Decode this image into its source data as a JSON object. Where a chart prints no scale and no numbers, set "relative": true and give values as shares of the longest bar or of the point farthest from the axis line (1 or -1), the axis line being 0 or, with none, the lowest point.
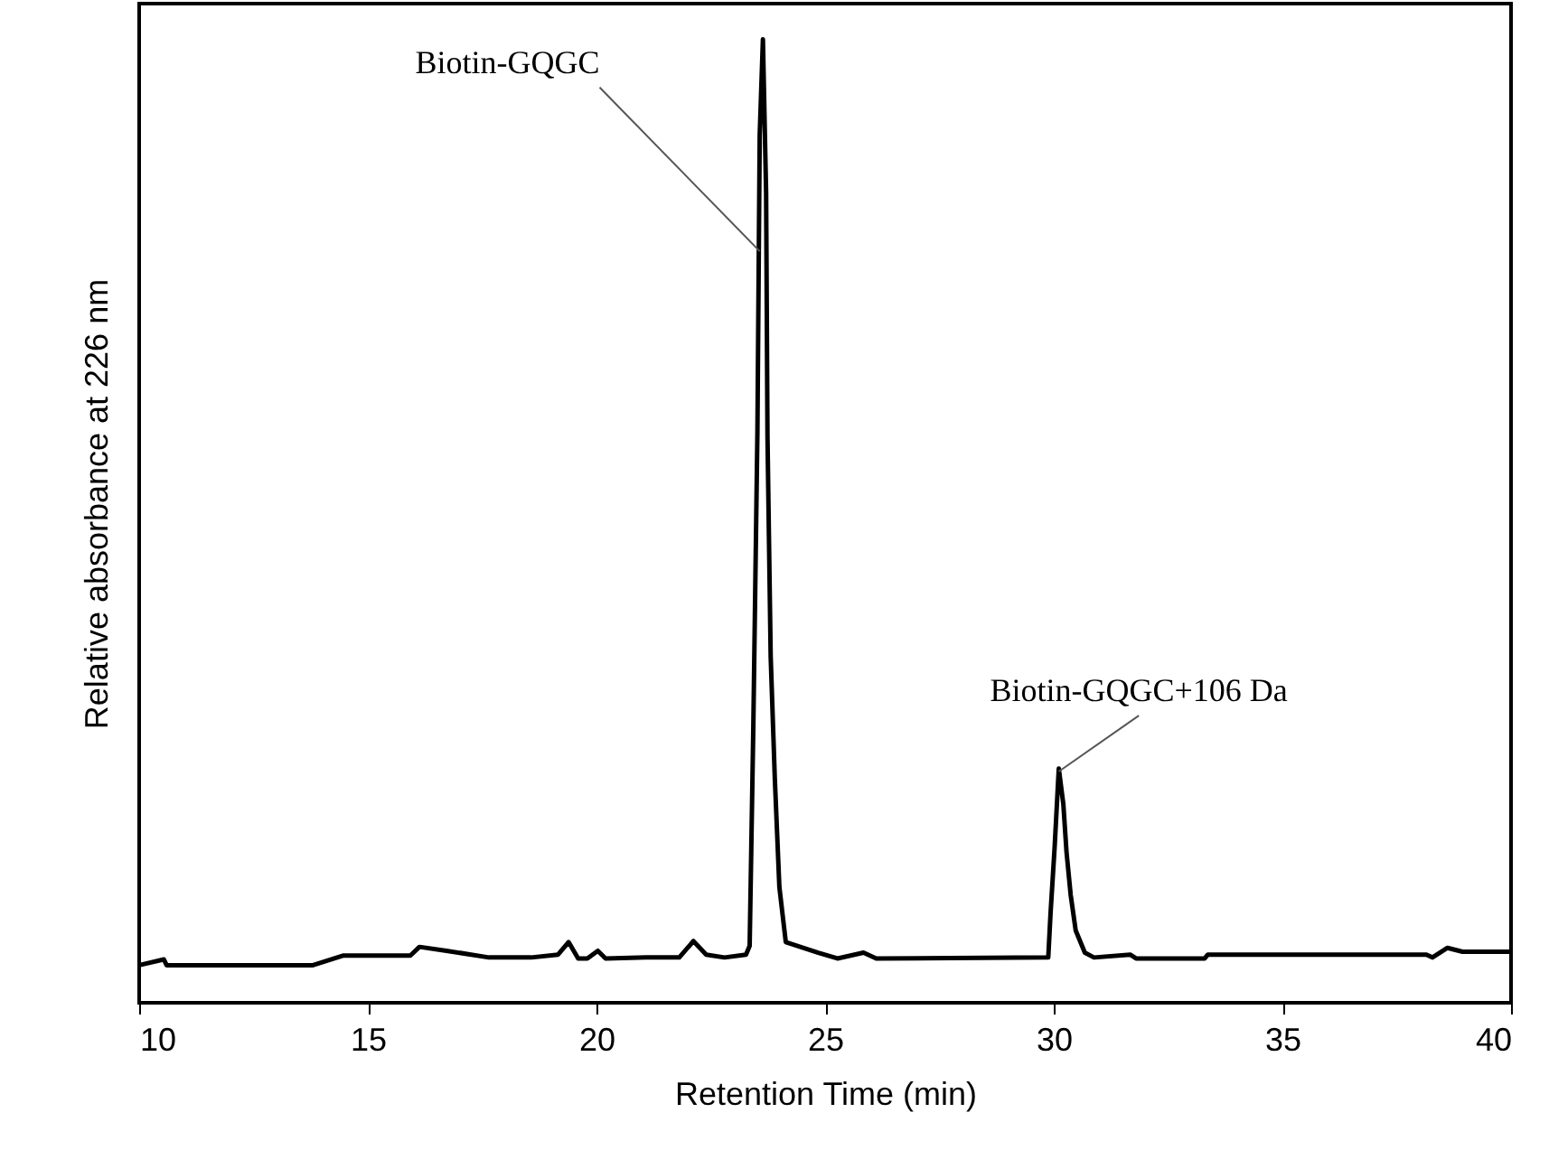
{
  "chart_data": {
    "type": "line",
    "relative": true,
    "xlabel": "Retention Time (min)",
    "ylabel": "Relative absorbance at 226 nm",
    "xlim": [
      10,
      40
    ],
    "xticks": [
      10,
      15,
      20,
      25,
      30,
      35,
      40
    ],
    "grid": false,
    "marker": "none",
    "line_style": "solid",
    "x": [
      10.0,
      10.54,
      10.6,
      13.8,
      14.47,
      15.93,
      16.13,
      16.72,
      17.65,
      18.57,
      19.16,
      19.39,
      19.6,
      19.8,
      20.03,
      20.2,
      21.09,
      21.81,
      22.12,
      22.4,
      22.8,
      23.27,
      23.35,
      23.43,
      23.52,
      23.57,
      23.64,
      23.71,
      23.74,
      23.81,
      23.9,
      24.0,
      24.14,
      24.85,
      25.27,
      25.84,
      26.12,
      29.88,
      29.93,
      30.02,
      30.11,
      30.21,
      30.28,
      30.37,
      30.48,
      30.68,
      30.88,
      31.67,
      31.8,
      33.3,
      33.37,
      38.15,
      38.28,
      38.61,
      38.94,
      40.0
    ],
    "series": [
      {
        "color": "#000000",
        "values": [
          0.039,
          0.045,
          0.039,
          0.039,
          0.049,
          0.049,
          0.058,
          0.054,
          0.047,
          0.047,
          0.05,
          0.063,
          0.046,
          0.046,
          0.054,
          0.046,
          0.047,
          0.047,
          0.064,
          0.05,
          0.047,
          0.05,
          0.059,
          0.286,
          0.593,
          0.901,
          1.0,
          0.841,
          0.587,
          0.359,
          0.233,
          0.12,
          0.063,
          0.052,
          0.046,
          0.052,
          0.046,
          0.047,
          0.093,
          0.162,
          0.243,
          0.206,
          0.156,
          0.112,
          0.075,
          0.052,
          0.047,
          0.05,
          0.046,
          0.046,
          0.05,
          0.05,
          0.047,
          0.057,
          0.053,
          0.053
        ]
      }
    ],
    "annotations": [
      {
        "text": "Biotin-GQGC",
        "x": 23.57,
        "y": 0.78
      },
      {
        "text": "Biotin-GQGC+106 Da",
        "x": 30.11,
        "y": 0.24
      }
    ]
  }
}
